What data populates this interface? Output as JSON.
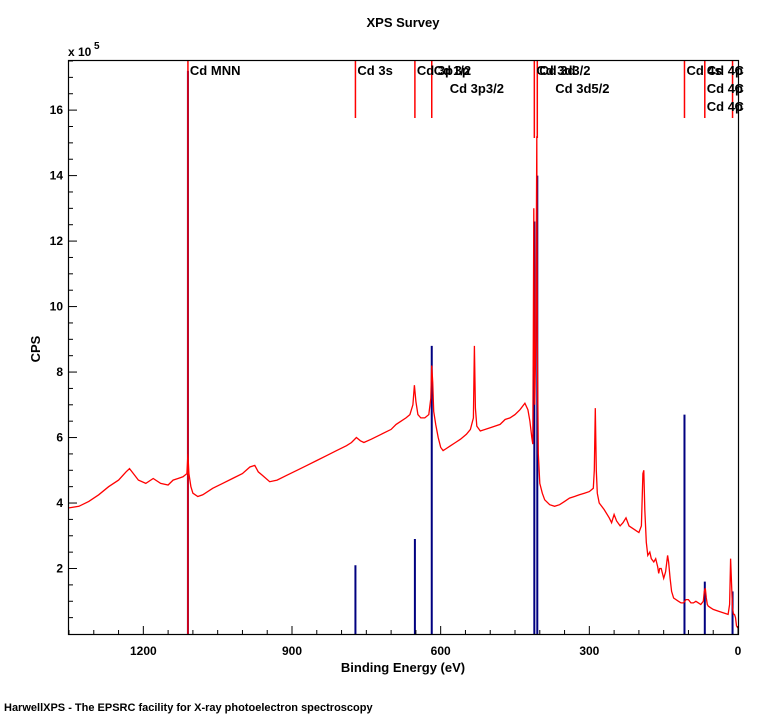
{
  "chart_data": {
    "type": "line",
    "title": "XPS Survey",
    "xlabel": "Binding Energy (eV)",
    "ylabel": "CPS",
    "y_multiplier_label": "x 10",
    "y_multiplier_exp": "5",
    "xlim": [
      1350,
      0
    ],
    "ylim": [
      0,
      17.5
    ],
    "x_ticks": [
      {
        "value": 1200,
        "label": "1200"
      },
      {
        "value": 900,
        "label": "900"
      },
      {
        "value": 600,
        "label": "600"
      },
      {
        "value": 300,
        "label": "300"
      },
      {
        "value": 0,
        "label": "0"
      }
    ],
    "y_ticks": [
      {
        "value": 2,
        "label": "2"
      },
      {
        "value": 4,
        "label": "4"
      },
      {
        "value": 6,
        "label": "6"
      },
      {
        "value": 8,
        "label": "8"
      },
      {
        "value": 10,
        "label": "10"
      },
      {
        "value": 12,
        "label": "12"
      },
      {
        "value": 14,
        "label": "14"
      },
      {
        "value": 16,
        "label": "16"
      }
    ],
    "spectrum_color": "#ff0000",
    "marker_color": "#000080",
    "spectrum": [
      [
        1350,
        3.85
      ],
      [
        1330,
        3.9
      ],
      [
        1310,
        4.05
      ],
      [
        1290,
        4.25
      ],
      [
        1270,
        4.5
      ],
      [
        1250,
        4.7
      ],
      [
        1235,
        4.95
      ],
      [
        1228,
        5.05
      ],
      [
        1220,
        4.9
      ],
      [
        1210,
        4.7
      ],
      [
        1195,
        4.6
      ],
      [
        1180,
        4.75
      ],
      [
        1165,
        4.6
      ],
      [
        1150,
        4.55
      ],
      [
        1140,
        4.7
      ],
      [
        1130,
        4.75
      ],
      [
        1120,
        4.8
      ],
      [
        1112,
        4.9
      ],
      [
        1110,
        5.5
      ],
      [
        1108,
        4.9
      ],
      [
        1104,
        4.5
      ],
      [
        1100,
        4.3
      ],
      [
        1090,
        4.2
      ],
      [
        1080,
        4.25
      ],
      [
        1060,
        4.45
      ],
      [
        1040,
        4.6
      ],
      [
        1020,
        4.75
      ],
      [
        1000,
        4.9
      ],
      [
        985,
        5.1
      ],
      [
        975,
        5.15
      ],
      [
        968,
        4.95
      ],
      [
        960,
        4.85
      ],
      [
        945,
        4.65
      ],
      [
        930,
        4.7
      ],
      [
        910,
        4.85
      ],
      [
        890,
        5.0
      ],
      [
        870,
        5.15
      ],
      [
        850,
        5.3
      ],
      [
        830,
        5.45
      ],
      [
        810,
        5.6
      ],
      [
        790,
        5.75
      ],
      [
        780,
        5.85
      ],
      [
        770,
        6.0
      ],
      [
        762,
        5.9
      ],
      [
        755,
        5.85
      ],
      [
        740,
        5.95
      ],
      [
        720,
        6.1
      ],
      [
        700,
        6.25
      ],
      [
        690,
        6.4
      ],
      [
        680,
        6.5
      ],
      [
        670,
        6.6
      ],
      [
        662,
        6.7
      ],
      [
        656,
        7.0
      ],
      [
        653,
        7.6
      ],
      [
        650,
        7.1
      ],
      [
        646,
        6.7
      ],
      [
        640,
        6.6
      ],
      [
        632,
        6.6
      ],
      [
        624,
        6.7
      ],
      [
        620,
        7.2
      ],
      [
        618,
        8.2
      ],
      [
        616,
        7.7
      ],
      [
        614,
        6.8
      ],
      [
        610,
        6.4
      ],
      [
        605,
        6.0
      ],
      [
        600,
        5.7
      ],
      [
        595,
        5.6
      ],
      [
        590,
        5.65
      ],
      [
        580,
        5.75
      ],
      [
        570,
        5.85
      ],
      [
        560,
        5.95
      ],
      [
        548,
        6.1
      ],
      [
        540,
        6.25
      ],
      [
        534,
        6.6
      ],
      [
        532,
        8.8
      ],
      [
        530,
        6.9
      ],
      [
        527,
        6.35
      ],
      [
        520,
        6.2
      ],
      [
        500,
        6.3
      ],
      [
        480,
        6.4
      ],
      [
        470,
        6.55
      ],
      [
        460,
        6.6
      ],
      [
        450,
        6.7
      ],
      [
        440,
        6.85
      ],
      [
        430,
        7.05
      ],
      [
        424,
        6.85
      ],
      [
        420,
        6.5
      ],
      [
        416,
        6.0
      ],
      [
        414,
        5.8
      ],
      [
        413,
        9.0
      ],
      [
        412,
        13.0
      ],
      [
        411,
        9.0
      ],
      [
        410,
        7.0
      ],
      [
        408,
        9.0
      ],
      [
        406,
        15.2
      ],
      [
        405,
        9.0
      ],
      [
        403,
        5.5
      ],
      [
        400,
        4.6
      ],
      [
        395,
        4.3
      ],
      [
        390,
        4.1
      ],
      [
        380,
        3.95
      ],
      [
        370,
        3.9
      ],
      [
        360,
        3.95
      ],
      [
        350,
        4.05
      ],
      [
        340,
        4.15
      ],
      [
        330,
        4.2
      ],
      [
        320,
        4.25
      ],
      [
        310,
        4.3
      ],
      [
        300,
        4.35
      ],
      [
        292,
        4.45
      ],
      [
        290,
        5.0
      ],
      [
        288,
        6.9
      ],
      [
        286,
        5.0
      ],
      [
        284,
        4.3
      ],
      [
        280,
        4.0
      ],
      [
        270,
        3.8
      ],
      [
        260,
        3.55
      ],
      [
        255,
        3.4
      ],
      [
        250,
        3.65
      ],
      [
        245,
        3.45
      ],
      [
        238,
        3.3
      ],
      [
        232,
        3.4
      ],
      [
        226,
        3.55
      ],
      [
        220,
        3.3
      ],
      [
        210,
        3.2
      ],
      [
        200,
        3.1
      ],
      [
        195,
        3.3
      ],
      [
        192,
        4.9
      ],
      [
        190,
        5.0
      ],
      [
        188,
        3.8
      ],
      [
        185,
        2.8
      ],
      [
        182,
        2.4
      ],
      [
        178,
        2.5
      ],
      [
        175,
        2.3
      ],
      [
        170,
        2.2
      ],
      [
        166,
        2.3
      ],
      [
        162,
        2.05
      ],
      [
        160,
        1.85
      ],
      [
        158,
        2.0
      ],
      [
        155,
        2.0
      ],
      [
        150,
        1.7
      ],
      [
        146,
        1.9
      ],
      [
        142,
        2.4
      ],
      [
        140,
        2.2
      ],
      [
        137,
        1.7
      ],
      [
        134,
        1.3
      ],
      [
        130,
        1.1
      ],
      [
        120,
        1.0
      ],
      [
        115,
        0.95
      ],
      [
        110,
        0.95
      ],
      [
        105,
        1.05
      ],
      [
        100,
        1.05
      ],
      [
        95,
        0.95
      ],
      [
        90,
        0.95
      ],
      [
        85,
        1.0
      ],
      [
        80,
        0.95
      ],
      [
        75,
        0.9
      ],
      [
        70,
        1.0
      ],
      [
        68,
        1.3
      ],
      [
        66,
        1.4
      ],
      [
        64,
        1.1
      ],
      [
        62,
        0.9
      ],
      [
        60,
        0.85
      ],
      [
        55,
        0.8
      ],
      [
        50,
        0.75
      ],
      [
        40,
        0.7
      ],
      [
        30,
        0.65
      ],
      [
        20,
        0.6
      ],
      [
        17,
        0.9
      ],
      [
        15,
        2.3
      ],
      [
        13,
        1.5
      ],
      [
        11,
        0.8
      ],
      [
        9,
        0.6
      ],
      [
        7,
        0.6
      ],
      [
        5,
        0.5
      ],
      [
        3,
        0.25
      ],
      [
        1,
        0.2
      ],
      [
        0,
        0.2
      ]
    ],
    "labelled_peaks": [
      {
        "x": 1110,
        "height": 17.2,
        "label_lines": [
          "Cd MNN"
        ]
      },
      {
        "x": 772,
        "height": 2.1,
        "label_lines": [
          "Cd 3s"
        ]
      },
      {
        "x": 652,
        "height": 2.9,
        "label_lines": [
          "Cd 3p1/2"
        ]
      },
      {
        "x": 618,
        "height": 8.8,
        "label_lines": [
          "Cd 3p",
          "Cd 3p3/2"
        ]
      },
      {
        "x": 411,
        "height": 12.6,
        "label_lines": [
          "Cd 3d3/2"
        ]
      },
      {
        "x": 405,
        "height": 14.0,
        "label_lines": [
          "Cd 3d",
          "Cd 3d5/2"
        ]
      },
      {
        "x": 108,
        "height": 6.7,
        "label_lines": [
          "Cd 4s"
        ]
      },
      {
        "x": 67,
        "height": 1.6,
        "label_lines": [
          "Cd 4p",
          "Cd 4p",
          "Cd 4p"
        ]
      },
      {
        "x": 11,
        "height": 1.3,
        "label_lines": [
          "C",
          "C",
          "C"
        ]
      }
    ]
  },
  "footer": "HarwellXPS - The EPSRC facility for X-ray photoelectron spectroscopy"
}
